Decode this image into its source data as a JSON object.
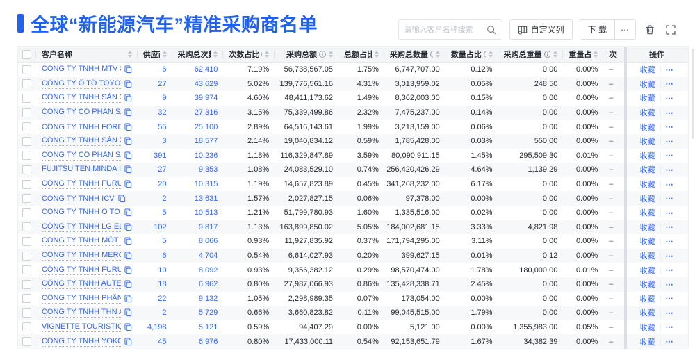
{
  "header": {
    "title": "全球“新能源汽车”精准采购商名单"
  },
  "toolbar": {
    "search_placeholder": "请输入客户名称搜索",
    "customize_columns_label": "自定义列",
    "download_label": "下 载",
    "more_label": "⋯"
  },
  "colors": {
    "accent_blue": "#2161f2",
    "link_blue": "#3468f5"
  },
  "table": {
    "columns": {
      "name": {
        "label": "客户名称",
        "info": false,
        "sort": true
      },
      "supplier": {
        "label": "供应商",
        "info": true,
        "sort": true
      },
      "purchase_times": {
        "label": "采购总次数",
        "info": true,
        "sort": true
      },
      "times_ratio": {
        "label": "次数占比",
        "info": true,
        "sort": true
      },
      "purchase_amount": {
        "label": "采购总额",
        "info": true,
        "sort": true
      },
      "amount_ratio": {
        "label": "总额占比",
        "info": true,
        "sort": true
      },
      "purchase_quantity": {
        "label": "采购总数量",
        "info": true,
        "sort": true
      },
      "quantity_ratio": {
        "label": "数量占比",
        "info": true,
        "sort": true
      },
      "purchase_weight": {
        "label": "采购总重量",
        "info": true,
        "sort": true
      },
      "weight_ratio": {
        "label": "重量占比",
        "info": true,
        "sort": true
      },
      "times_trend": {
        "label": "次数趋势",
        "info": false,
        "sort": false
      },
      "ops": {
        "label": "操作"
      }
    },
    "action_favorite": "收藏",
    "action_separator": "|",
    "action_more": "⋯",
    "rows": [
      {
        "name": "CÔNG TY TNHH MTV SẢN XUẤ...",
        "supplier": "6",
        "purchase_times": "62,410",
        "times_ratio": "7.19%",
        "purchase_amount": "56,738,567.05",
        "amount_ratio": "1.75%",
        "purchase_quantity": "6,747,707.00",
        "quantity_ratio": "0.12%",
        "purchase_weight": "0.00",
        "weight_ratio": "0.00%",
        "times_trend": "–"
      },
      {
        "name": "CÔNG TY Ô TÔ TOYOTA VIỆT ...",
        "supplier": "27",
        "purchase_times": "43,629",
        "times_ratio": "5.02%",
        "purchase_amount": "139,776,561.16",
        "amount_ratio": "4.31%",
        "purchase_quantity": "3,013,959.02",
        "quantity_ratio": "0.05%",
        "purchase_weight": "248.50",
        "weight_ratio": "0.00%",
        "times_trend": "–"
      },
      {
        "name": "CÔNG TY TNHH SẢN XUẤT VÀ ...",
        "supplier": "9",
        "purchase_times": "39,974",
        "times_ratio": "4.60%",
        "purchase_amount": "48,411,173.62",
        "amount_ratio": "1.49%",
        "purchase_quantity": "8,362,003.00",
        "quantity_ratio": "0.15%",
        "purchase_weight": "0.00",
        "weight_ratio": "0.00%",
        "times_trend": "–"
      },
      {
        "name": "CÔNG TY CỔ PHẦN SẢN XUẤT...",
        "supplier": "32",
        "purchase_times": "27,316",
        "times_ratio": "3.15%",
        "purchase_amount": "75,339,499.86",
        "amount_ratio": "2.32%",
        "purchase_quantity": "7,475,237.00",
        "quantity_ratio": "0.14%",
        "purchase_weight": "0.00",
        "weight_ratio": "0.00%",
        "times_trend": "–"
      },
      {
        "name": "CÔNG TY TNHH FORD VIỆT NAM",
        "supplier": "55",
        "purchase_times": "25,100",
        "times_ratio": "2.89%",
        "purchase_amount": "64,516,143.61",
        "amount_ratio": "1.99%",
        "purchase_quantity": "3,213,159.00",
        "quantity_ratio": "0.06%",
        "purchase_weight": "0.00",
        "weight_ratio": "0.00%",
        "times_trend": "–"
      },
      {
        "name": "CÔNG TY TNHH SẢN XUẤT VÀ ...",
        "supplier": "3",
        "purchase_times": "18,577",
        "times_ratio": "2.14%",
        "purchase_amount": "19,040,834.12",
        "amount_ratio": "0.59%",
        "purchase_quantity": "1,785,428.00",
        "quantity_ratio": "0.03%",
        "purchase_weight": "550.00",
        "weight_ratio": "0.00%",
        "times_trend": "–"
      },
      {
        "name": "CÔNG TY CỔ PHẦN SẢN XUẤT...",
        "supplier": "391",
        "purchase_times": "10,236",
        "times_ratio": "1.18%",
        "purchase_amount": "116,329,847.89",
        "amount_ratio": "3.59%",
        "purchase_quantity": "80,090,911.15",
        "quantity_ratio": "1.45%",
        "purchase_weight": "295,509.30",
        "weight_ratio": "0.01%",
        "times_trend": "–"
      },
      {
        "name": "FUJITSU TEN MINDA INDIA PVT...",
        "supplier": "27",
        "purchase_times": "9,353",
        "times_ratio": "1.08%",
        "purchase_amount": "24,083,529.10",
        "amount_ratio": "0.74%",
        "purchase_quantity": "256,420,426.29",
        "quantity_ratio": "4.64%",
        "purchase_weight": "1,139.29",
        "weight_ratio": "0.00%",
        "times_trend": "–"
      },
      {
        "name": "CÔNG TY TNHH FURUKAWA A...",
        "supplier": "20",
        "purchase_times": "10,315",
        "times_ratio": "1.19%",
        "purchase_amount": "14,657,823.89",
        "amount_ratio": "0.45%",
        "purchase_quantity": "341,268,232.00",
        "quantity_ratio": "6.17%",
        "purchase_weight": "0.00",
        "weight_ratio": "0.00%",
        "times_trend": "–"
      },
      {
        "name": "CÔNG TY TNHH ICV",
        "supplier": "2",
        "purchase_times": "13,631",
        "times_ratio": "1.57%",
        "purchase_amount": "2,027,827.15",
        "amount_ratio": "0.06%",
        "purchase_quantity": "97,378.00",
        "quantity_ratio": "0.00%",
        "purchase_weight": "0.00",
        "weight_ratio": "0.00%",
        "times_trend": "–"
      },
      {
        "name": "CÔNG TY TNHH Ô TÔ MITSUBI...",
        "supplier": "5",
        "purchase_times": "10,513",
        "times_ratio": "1.21%",
        "purchase_amount": "51,799,780.93",
        "amount_ratio": "1.60%",
        "purchase_quantity": "1,335,516.00",
        "quantity_ratio": "0.02%",
        "purchase_weight": "0.00",
        "weight_ratio": "0.00%",
        "times_trend": "–"
      },
      {
        "name": "CÔNG TY TNHH LG ELECTRON...",
        "supplier": "102",
        "purchase_times": "9,817",
        "times_ratio": "1.13%",
        "purchase_amount": "163,899,850.02",
        "amount_ratio": "5.05%",
        "purchase_quantity": "184,002,681.15",
        "quantity_ratio": "3.33%",
        "purchase_weight": "4,821.98",
        "weight_ratio": "0.00%",
        "times_trend": "–"
      },
      {
        "name": "CÔNG TY TNHH MỘT THÀNH V...",
        "supplier": "5",
        "purchase_times": "8,066",
        "times_ratio": "0.93%",
        "purchase_amount": "11,927,835.92",
        "amount_ratio": "0.37%",
        "purchase_quantity": "171,794,295.00",
        "quantity_ratio": "3.11%",
        "purchase_weight": "0.00",
        "weight_ratio": "0.00%",
        "times_trend": "–"
      },
      {
        "name": "CÔNG TY TNHH MERCEDES-B...",
        "supplier": "6",
        "purchase_times": "4,704",
        "times_ratio": "0.54%",
        "purchase_amount": "6,614,027.93",
        "amount_ratio": "0.20%",
        "purchase_quantity": "399,627.15",
        "quantity_ratio": "0.01%",
        "purchase_weight": "0.12",
        "weight_ratio": "0.00%",
        "times_trend": "–"
      },
      {
        "name": "CÔNG TY TNHH FURUKAWA A...",
        "supplier": "10",
        "purchase_times": "8,092",
        "times_ratio": "0.93%",
        "purchase_amount": "9,356,382.12",
        "amount_ratio": "0.29%",
        "purchase_quantity": "98,570,474.00",
        "quantity_ratio": "1.78%",
        "purchase_weight": "180,000.00",
        "weight_ratio": "0.01%",
        "times_trend": "–"
      },
      {
        "name": "CÔNG TY TNHH AUTEL VIỆT N...",
        "supplier": "18",
        "purchase_times": "6,962",
        "times_ratio": "0.80%",
        "purchase_amount": "27,987,066.93",
        "amount_ratio": "0.86%",
        "purchase_quantity": "135,428,338.71",
        "quantity_ratio": "2.45%",
        "purchase_weight": "0.00",
        "weight_ratio": "0.00%",
        "times_trend": "–"
      },
      {
        "name": "CÔNG TY TNHH PHÂN PHỐI T...",
        "supplier": "22",
        "purchase_times": "9,132",
        "times_ratio": "1.05%",
        "purchase_amount": "2,298,989.35",
        "amount_ratio": "0.07%",
        "purchase_quantity": "173,054.00",
        "quantity_ratio": "0.00%",
        "purchase_weight": "0.00",
        "weight_ratio": "0.00%",
        "times_trend": "–"
      },
      {
        "name": "CÔNG TY TNHH THN AUTOPAR...",
        "supplier": "2",
        "purchase_times": "5,729",
        "times_ratio": "0.66%",
        "purchase_amount": "3,660,823.82",
        "amount_ratio": "0.11%",
        "purchase_quantity": "99,045,515.00",
        "quantity_ratio": "1.79%",
        "purchase_weight": "0.00",
        "weight_ratio": "0.00%",
        "times_trend": "–"
      },
      {
        "name": "VIGNETTE TOURISTIQUE G UNI...",
        "supplier": "4,198",
        "purchase_times": "5,121",
        "times_ratio": "0.59%",
        "purchase_amount": "94,407.29",
        "amount_ratio": "0.00%",
        "purchase_quantity": "5,121.00",
        "quantity_ratio": "0.00%",
        "purchase_weight": "1,355,983.00",
        "weight_ratio": "0.05%",
        "times_trend": "–"
      },
      {
        "name": "CÔNG TY TNHH YOKOWO VIỆT...",
        "supplier": "45",
        "purchase_times": "6,976",
        "times_ratio": "0.80%",
        "purchase_amount": "17,433,000.11",
        "amount_ratio": "0.54%",
        "purchase_quantity": "92,153,651.79",
        "quantity_ratio": "1.67%",
        "purchase_weight": "34,382.39",
        "weight_ratio": "0.00%",
        "times_trend": "–"
      }
    ]
  }
}
